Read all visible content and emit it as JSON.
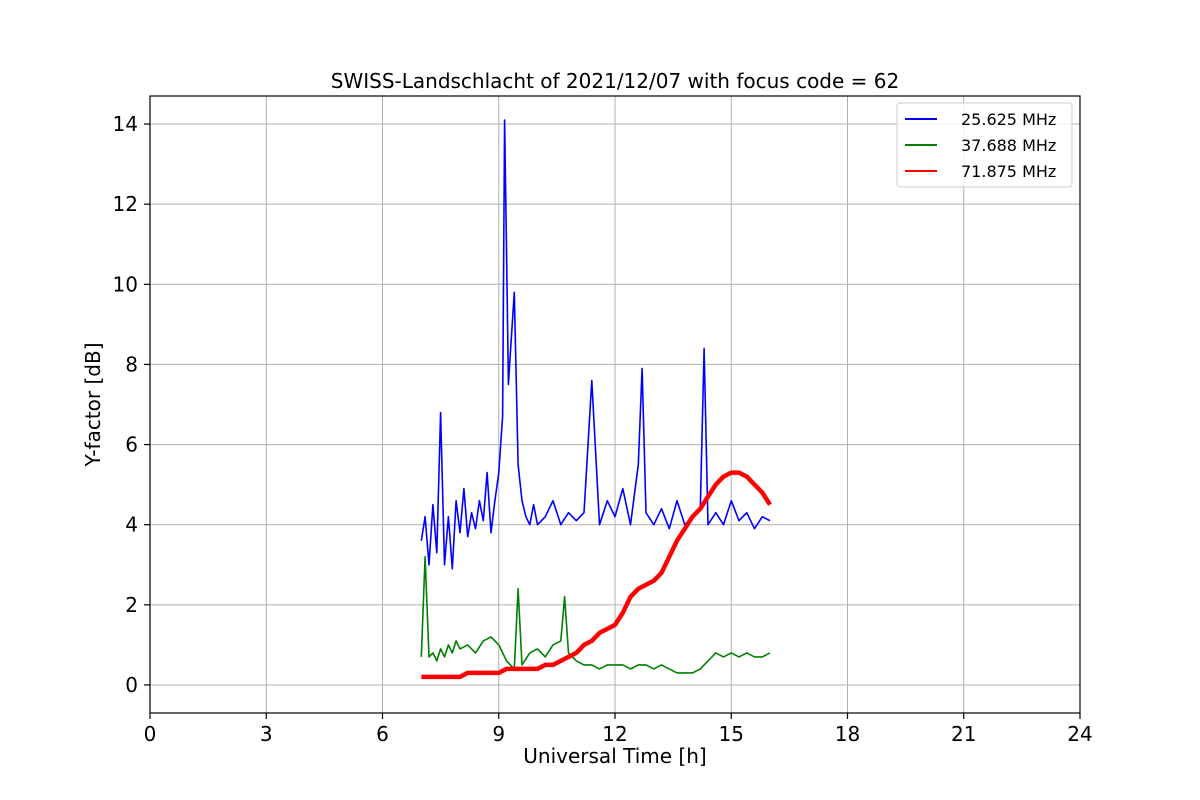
{
  "chart_data": {
    "type": "line",
    "title": "SWISS-Landschlacht of 2021/12/07 with focus code = 62",
    "xlabel": "Universal Time [h]",
    "ylabel": "Y-factor [dB]",
    "xlim": [
      0,
      24
    ],
    "ylim": [
      -0.7,
      14.7
    ],
    "xticks": [
      0,
      3,
      6,
      9,
      12,
      15,
      18,
      21,
      24
    ],
    "yticks": [
      0,
      2,
      4,
      6,
      8,
      10,
      12,
      14
    ],
    "grid": true,
    "legend_position": "top-right",
    "series": [
      {
        "name": "25.625 MHz",
        "color": "#0000ff",
        "x": [
          7.0,
          7.1,
          7.2,
          7.3,
          7.4,
          7.5,
          7.6,
          7.7,
          7.8,
          7.9,
          8.0,
          8.1,
          8.2,
          8.3,
          8.4,
          8.5,
          8.6,
          8.7,
          8.8,
          8.9,
          9.0,
          9.1,
          9.15,
          9.2,
          9.25,
          9.3,
          9.4,
          9.5,
          9.6,
          9.7,
          9.8,
          9.9,
          10.0,
          10.2,
          10.4,
          10.6,
          10.8,
          11.0,
          11.2,
          11.4,
          11.6,
          11.8,
          12.0,
          12.2,
          12.4,
          12.6,
          12.7,
          12.8,
          13.0,
          13.2,
          13.4,
          13.6,
          13.8,
          14.0,
          14.2,
          14.3,
          14.4,
          14.6,
          14.8,
          15.0,
          15.2,
          15.4,
          15.6,
          15.8,
          16.0
        ],
        "y": [
          3.6,
          4.2,
          3.0,
          4.5,
          3.3,
          6.8,
          3.0,
          4.2,
          2.9,
          4.6,
          3.8,
          4.9,
          3.7,
          4.3,
          3.9,
          4.6,
          4.1,
          5.3,
          3.8,
          4.6,
          5.3,
          6.7,
          14.1,
          10.9,
          7.5,
          8.3,
          9.8,
          5.5,
          4.6,
          4.2,
          4.0,
          4.5,
          4.0,
          4.2,
          4.6,
          4.0,
          4.3,
          4.1,
          4.3,
          7.6,
          4.0,
          4.6,
          4.2,
          4.9,
          4.0,
          5.5,
          7.9,
          4.3,
          4.0,
          4.4,
          3.9,
          4.6,
          4.0,
          4.2,
          4.4,
          8.4,
          4.0,
          4.3,
          4.0,
          4.6,
          4.1,
          4.3,
          3.9,
          4.2,
          4.1
        ]
      },
      {
        "name": "37.688 MHz",
        "color": "#008000",
        "x": [
          7.0,
          7.1,
          7.2,
          7.3,
          7.4,
          7.5,
          7.6,
          7.7,
          7.8,
          7.9,
          8.0,
          8.2,
          8.4,
          8.6,
          8.8,
          9.0,
          9.2,
          9.4,
          9.5,
          9.6,
          9.8,
          10.0,
          10.2,
          10.4,
          10.6,
          10.7,
          10.8,
          11.0,
          11.2,
          11.4,
          11.6,
          11.8,
          12.0,
          12.2,
          12.4,
          12.6,
          12.8,
          13.0,
          13.2,
          13.4,
          13.6,
          13.8,
          14.0,
          14.2,
          14.4,
          14.6,
          14.8,
          15.0,
          15.2,
          15.4,
          15.6,
          15.8,
          16.0
        ],
        "y": [
          0.7,
          3.2,
          0.7,
          0.8,
          0.6,
          0.9,
          0.7,
          1.0,
          0.8,
          1.1,
          0.9,
          1.0,
          0.8,
          1.1,
          1.2,
          1.0,
          0.6,
          0.4,
          2.4,
          0.5,
          0.8,
          0.9,
          0.7,
          1.0,
          1.1,
          2.2,
          0.8,
          0.6,
          0.5,
          0.5,
          0.4,
          0.5,
          0.5,
          0.5,
          0.4,
          0.5,
          0.5,
          0.4,
          0.5,
          0.4,
          0.3,
          0.3,
          0.3,
          0.4,
          0.6,
          0.8,
          0.7,
          0.8,
          0.7,
          0.8,
          0.7,
          0.7,
          0.8
        ]
      },
      {
        "name": "71.875 MHz",
        "color": "#ff0000",
        "x": [
          7.0,
          7.2,
          7.4,
          7.6,
          7.8,
          8.0,
          8.2,
          8.4,
          8.6,
          8.8,
          9.0,
          9.2,
          9.4,
          9.6,
          9.8,
          10.0,
          10.2,
          10.4,
          10.6,
          10.8,
          11.0,
          11.2,
          11.4,
          11.6,
          11.8,
          12.0,
          12.2,
          12.4,
          12.6,
          12.8,
          13.0,
          13.2,
          13.4,
          13.6,
          13.8,
          14.0,
          14.2,
          14.4,
          14.6,
          14.8,
          15.0,
          15.2,
          15.4,
          15.6,
          15.8,
          16.0
        ],
        "y": [
          0.2,
          0.2,
          0.2,
          0.2,
          0.2,
          0.2,
          0.3,
          0.3,
          0.3,
          0.3,
          0.3,
          0.4,
          0.4,
          0.4,
          0.4,
          0.4,
          0.5,
          0.5,
          0.6,
          0.7,
          0.8,
          1.0,
          1.1,
          1.3,
          1.4,
          1.5,
          1.8,
          2.2,
          2.4,
          2.5,
          2.6,
          2.8,
          3.2,
          3.6,
          3.9,
          4.2,
          4.4,
          4.7,
          5.0,
          5.2,
          5.3,
          5.3,
          5.2,
          5.0,
          4.8,
          4.5
        ]
      }
    ]
  }
}
